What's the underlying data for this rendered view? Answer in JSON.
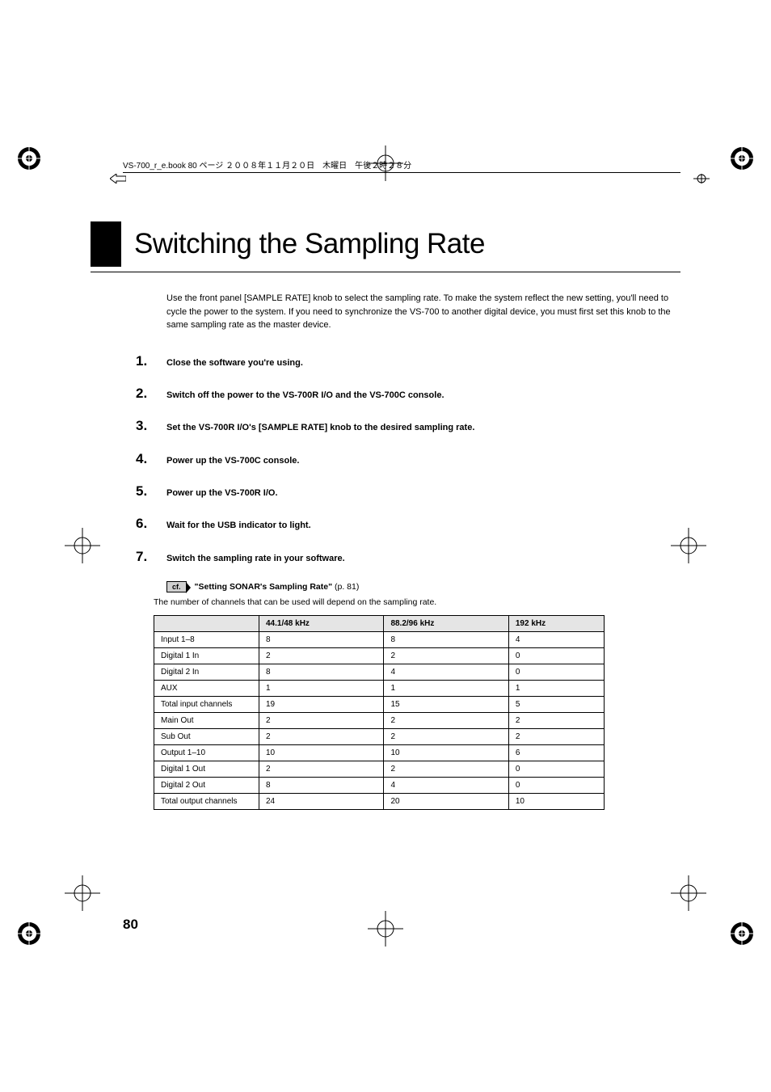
{
  "book_header": "VS-700_r_e.book  80 ページ  ２００８年１１月２０日　木曜日　午後２時２８分",
  "title": "Switching the Sampling Rate",
  "intro": "Use the front panel [SAMPLE RATE] knob to select the sampling rate. To make the system reflect the new setting, you'll need to cycle the power to the system. If you need to synchronize the VS-700 to another digital device, you must first set this knob to the same sampling rate as the master device.",
  "steps": [
    {
      "n": "1.",
      "t": "Close the software you're using."
    },
    {
      "n": "2.",
      "t": "Switch off the power to the VS-700R I/O and the VS-700C console."
    },
    {
      "n": "3.",
      "t": "Set the VS-700R I/O's [SAMPLE RATE] knob to the desired sampling rate."
    },
    {
      "n": "4.",
      "t": "Power up the VS-700C console."
    },
    {
      "n": "5.",
      "t": "Power up the VS-700R I/O."
    },
    {
      "n": "6.",
      "t": "Wait for the USB indicator to light."
    },
    {
      "n": "7.",
      "t": "Switch the sampling rate in your software."
    }
  ],
  "cf_label": "cf.",
  "cf_bold": "\"Setting SONAR's Sampling Rate\"",
  "cf_rest": " (p. 81)",
  "sub_text": "The number of channels that can be used will depend on the sampling rate.",
  "table": {
    "columns": [
      "",
      "44.1/48 kHz",
      "88.2/96 kHz",
      "192 kHz"
    ],
    "rows": [
      [
        "Input 1–8",
        "8",
        "8",
        "4"
      ],
      [
        "Digital 1 In",
        "2",
        "2",
        "0"
      ],
      [
        "Digital 2 In",
        "8",
        "4",
        "0"
      ],
      [
        "AUX",
        "1",
        "1",
        "1"
      ],
      [
        "Total input channels",
        "19",
        "15",
        "5"
      ],
      [
        "Main Out",
        "2",
        "2",
        "2"
      ],
      [
        "Sub Out",
        "2",
        "2",
        "2"
      ],
      [
        "Output 1–10",
        "10",
        "10",
        "6"
      ],
      [
        "Digital 1 Out",
        "2",
        "2",
        "0"
      ],
      [
        "Digital 2 Out",
        "8",
        "4",
        "0"
      ],
      [
        "Total output channels",
        "24",
        "20",
        "10"
      ]
    ],
    "header_bg": "#e5e5e5",
    "border_color": "#000000"
  },
  "page_number": "80",
  "colors": {
    "text": "#000000",
    "bg": "#ffffff"
  },
  "fonts": {
    "title_size": 35,
    "body_size": 11,
    "step_num_size": 17,
    "table_size": 10
  }
}
